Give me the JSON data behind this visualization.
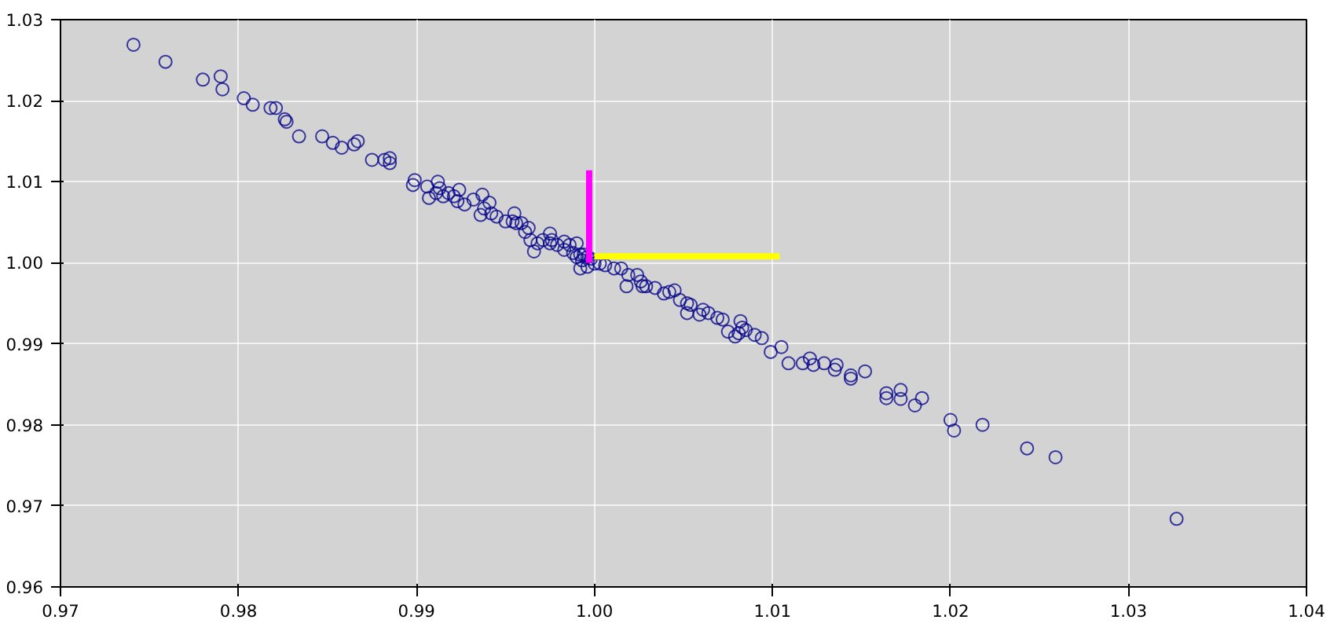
{
  "chart_data": {
    "type": "scatter",
    "xlim": [
      0.97,
      1.04
    ],
    "ylim": [
      0.96,
      1.03
    ],
    "xticks": [
      {
        "value": 0.97,
        "label": "0.97"
      },
      {
        "value": 0.98,
        "label": "0.98"
      },
      {
        "value": 0.99,
        "label": "0.99"
      },
      {
        "value": 1.0,
        "label": "1.00"
      },
      {
        "value": 1.01,
        "label": "1.01"
      },
      {
        "value": 1.02,
        "label": "1.02"
      },
      {
        "value": 1.03,
        "label": "1.03"
      },
      {
        "value": 1.04,
        "label": "1.04"
      }
    ],
    "yticks": [
      {
        "value": 0.96,
        "label": "0.96"
      },
      {
        "value": 0.97,
        "label": "0.97"
      },
      {
        "value": 0.98,
        "label": "0.98"
      },
      {
        "value": 0.99,
        "label": "0.99"
      },
      {
        "value": 1.0,
        "label": "1.00"
      },
      {
        "value": 1.01,
        "label": "1.01"
      },
      {
        "value": 1.02,
        "label": "1.02"
      },
      {
        "value": 1.03,
        "label": "1.03"
      }
    ],
    "grid": true,
    "series": [
      {
        "marker": "circle",
        "color": "#00008b",
        "x": [
          0.9741,
          0.9759,
          0.978,
          0.979,
          0.9791,
          0.9803,
          0.9808,
          0.9818,
          0.9821,
          0.9826,
          0.9827,
          0.9834,
          0.9847,
          0.9853,
          0.9858,
          0.9865,
          0.9867,
          0.9875,
          0.9882,
          0.9885,
          0.9885,
          0.9899,
          0.9898,
          0.9906,
          0.9907,
          0.9911,
          0.9912,
          0.9913,
          0.9915,
          0.9918,
          0.9921,
          0.9923,
          0.9924,
          0.9927,
          0.9932,
          0.9936,
          0.9937,
          0.9938,
          0.9941,
          0.9942,
          0.9945,
          0.995,
          0.9954,
          0.9955,
          0.9956,
          0.9959,
          0.9961,
          0.9963,
          0.9964,
          0.9966,
          0.9968,
          0.9971,
          0.9975,
          0.9975,
          0.9976,
          0.9979,
          0.9983,
          0.9983,
          0.9986,
          0.9988,
          0.999,
          0.999,
          0.9992,
          0.9993,
          0.9994,
          0.9996,
          0.9998,
          1.0,
          0.9992,
          0.9996,
          1.0003,
          1.0006,
          1.0011,
          1.0015,
          1.0018,
          1.0019,
          1.0024,
          1.0026,
          1.0027,
          1.0029,
          1.0034,
          1.0039,
          1.0042,
          1.0045,
          1.0048,
          1.0052,
          1.0052,
          1.0054,
          1.0059,
          1.0061,
          1.0064,
          1.0069,
          1.0072,
          1.0075,
          1.0079,
          1.0081,
          1.0082,
          1.0083,
          1.0085,
          1.009,
          1.0094,
          1.0099,
          1.0105,
          1.0109,
          1.0117,
          1.0121,
          1.0123,
          1.0129,
          1.0135,
          1.0136,
          1.0144,
          1.0144,
          1.0152,
          1.0164,
          1.0164,
          1.0172,
          1.0172,
          1.018,
          1.0184,
          1.02,
          1.0202,
          1.0218,
          1.0243,
          1.0259,
          1.0327
        ],
        "values": [
          1.0269,
          1.0248,
          1.0226,
          1.023,
          1.0214,
          1.0203,
          1.0195,
          1.0191,
          1.0191,
          1.0177,
          1.0174,
          1.0156,
          1.0156,
          1.0148,
          1.0142,
          1.0146,
          1.015,
          1.0127,
          1.0127,
          1.0123,
          1.0129,
          1.0102,
          1.0096,
          1.0094,
          1.008,
          1.0086,
          1.01,
          1.0092,
          1.0082,
          1.0086,
          1.0082,
          1.0076,
          1.009,
          1.0072,
          1.0078,
          1.0059,
          1.0084,
          1.0067,
          1.0074,
          1.0061,
          1.0057,
          1.0051,
          1.0051,
          1.0061,
          1.0049,
          1.0049,
          1.0038,
          1.0043,
          1.0028,
          1.0014,
          1.0024,
          1.0028,
          1.0036,
          1.0024,
          1.0028,
          1.0022,
          1.0016,
          1.0026,
          1.0022,
          1.0012,
          1.0024,
          1.0007,
          1.001,
          1.0003,
          1.001,
          1.0007,
          1.0005,
          0.9999,
          0.9993,
          0.9995,
          0.9999,
          0.9997,
          0.9993,
          0.9993,
          0.9971,
          0.9985,
          0.9985,
          0.9977,
          0.9971,
          0.9971,
          0.9969,
          0.9962,
          0.9964,
          0.9966,
          0.9954,
          0.995,
          0.9938,
          0.9948,
          0.9936,
          0.9942,
          0.9938,
          0.9932,
          0.993,
          0.9915,
          0.9909,
          0.9913,
          0.9928,
          0.992,
          0.9917,
          0.9911,
          0.9907,
          0.989,
          0.9896,
          0.9876,
          0.9876,
          0.9882,
          0.9874,
          0.9876,
          0.9868,
          0.9874,
          0.9857,
          0.9861,
          0.9866,
          0.9839,
          0.9833,
          0.9843,
          0.9832,
          0.9824,
          0.9833,
          0.9806,
          0.9793,
          0.98,
          0.9771,
          0.976,
          0.9684
        ]
      },
      {
        "type": "line",
        "marker": "none",
        "color": "#ff00ff",
        "x": [
          0.9997,
          0.9997
        ],
        "values": [
          1.0,
          1.0114
        ]
      },
      {
        "type": "line",
        "marker": "none",
        "color": "#ffff00",
        "x": [
          1.0,
          1.0104
        ],
        "values": [
          1.0008,
          1.0008
        ]
      }
    ]
  }
}
